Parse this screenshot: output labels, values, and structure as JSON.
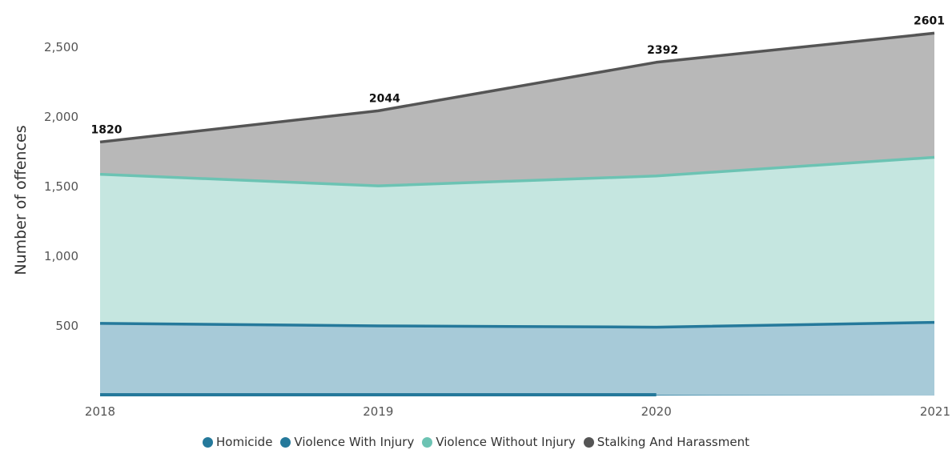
{
  "chart_data": {
    "type": "area",
    "stacked": true,
    "x": [
      "2018",
      "2019",
      "2020",
      "2021"
    ],
    "ylabel": "Number of offences",
    "xlabel": "",
    "ylim": [
      0,
      2600
    ],
    "yticks": [
      500,
      1000,
      1500,
      2000,
      2500
    ],
    "ytick_labels": [
      "500",
      "1,000",
      "1,500",
      "2,000",
      "2,500"
    ],
    "series": [
      {
        "name": "Homicide",
        "values": [
          3,
          3,
          4,
          null
        ],
        "color": "#25799b",
        "fill": "#25799b"
      },
      {
        "name": "Violence With Injury",
        "values": [
          515,
          497,
          487,
          525
        ],
        "color": "#25799b",
        "fill": "#a7cad8"
      },
      {
        "name": "Violence Without Injury",
        "values": [
          1070,
          1005,
          1085,
          1185
        ],
        "color": "#6cc3b3",
        "fill": "#c5e6e0"
      },
      {
        "name": "Stalking And Harassment",
        "values": [
          232,
          539,
          816,
          891
        ],
        "color": "#555555",
        "fill": "#b8b8b8"
      }
    ],
    "totals": [
      1820,
      2044,
      2392,
      2601
    ],
    "grid": false,
    "legend_position": "bottom"
  }
}
